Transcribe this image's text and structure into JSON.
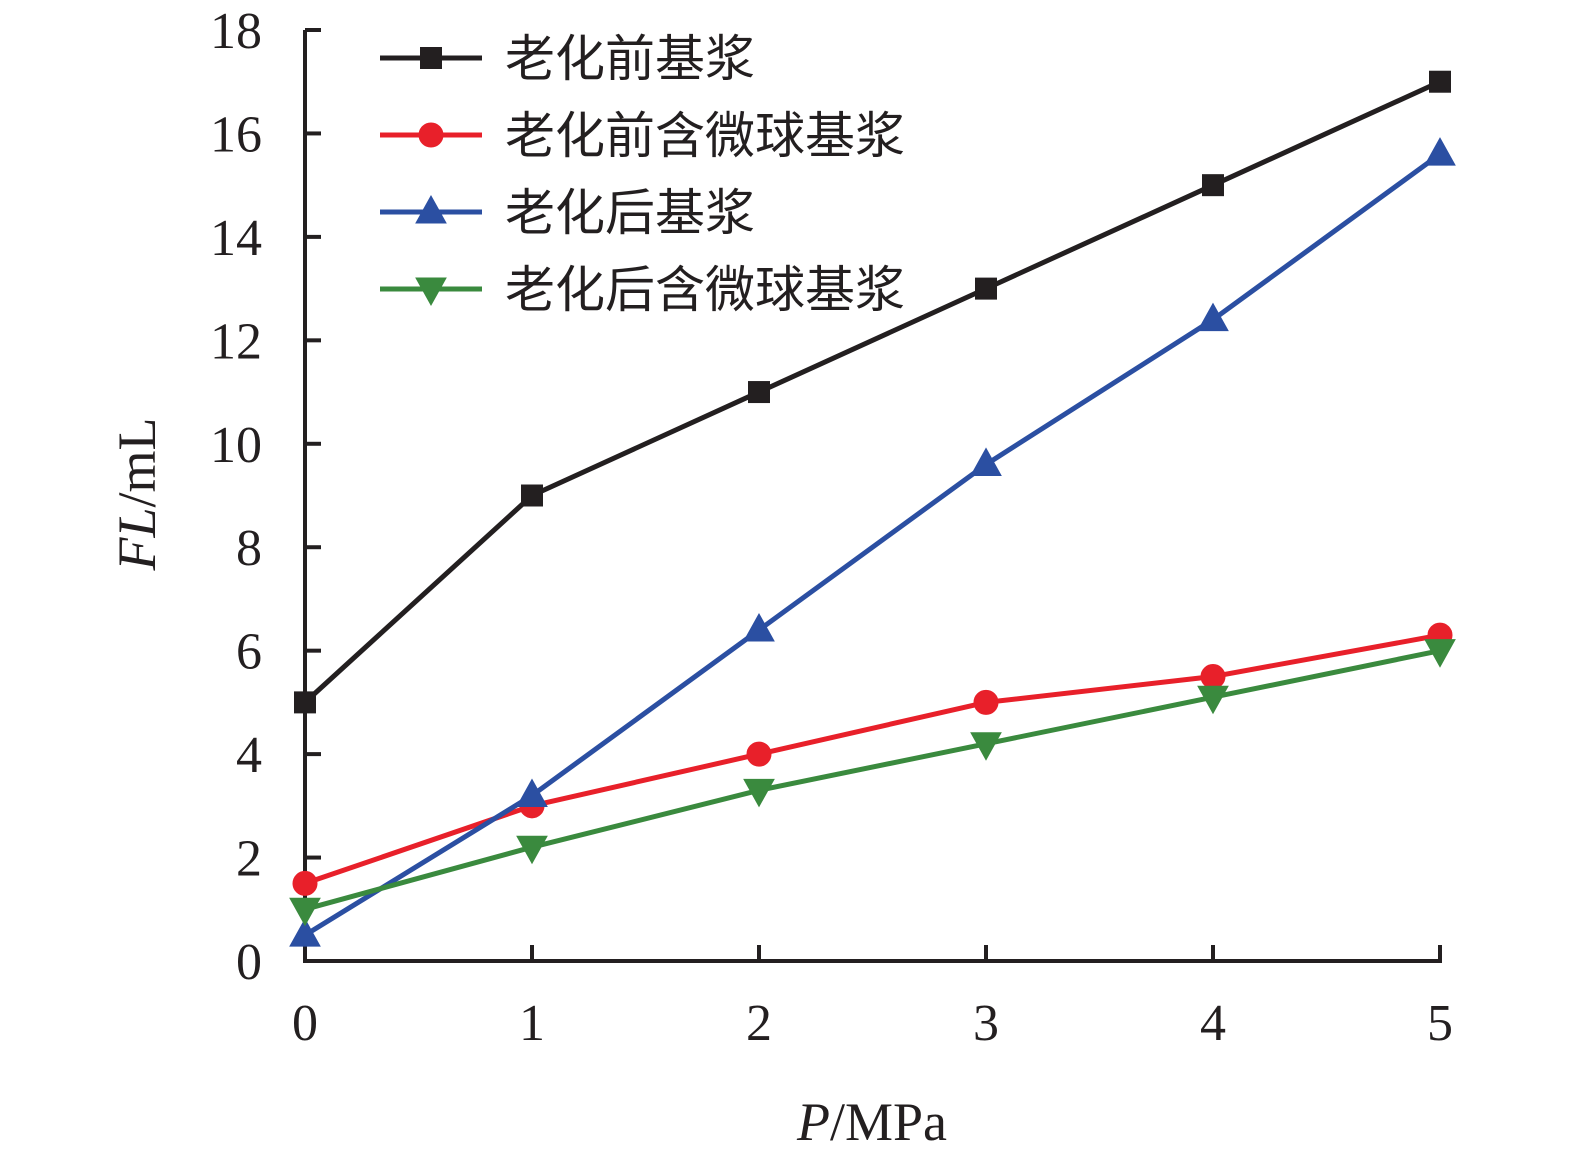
{
  "chart_data": {
    "type": "line",
    "x": [
      0,
      1,
      2,
      3,
      4,
      5
    ],
    "xlim": [
      0,
      5
    ],
    "ylim": [
      0,
      18
    ],
    "xticks": [
      "0",
      "1",
      "2",
      "3",
      "4",
      "5"
    ],
    "yticks": [
      "0",
      "2",
      "4",
      "6",
      "8",
      "10",
      "12",
      "14",
      "16",
      "18"
    ],
    "xlabel": {
      "italic": "P",
      "rest": "/MPa"
    },
    "ylabel": {
      "italic": "FL",
      "rest": "/mL"
    },
    "grid": false,
    "legend_position": "top-left",
    "series": [
      {
        "name": "老化前基浆",
        "color": "#231f20",
        "marker": "square",
        "values": [
          5,
          9,
          11,
          13,
          15,
          17
        ]
      },
      {
        "name": "老化前含微球基浆",
        "color": "#e8202a",
        "marker": "circle",
        "values": [
          1.5,
          3,
          4,
          5,
          5.5,
          6.3
        ]
      },
      {
        "name": "老化后基浆",
        "color": "#2b4fa2",
        "marker": "triangle-up",
        "values": [
          0.5,
          3.2,
          6.4,
          9.6,
          12.4,
          15.6
        ]
      },
      {
        "name": "老化后含微球基浆",
        "color": "#3a8a3e",
        "marker": "triangle-down",
        "values": [
          1,
          2.2,
          3.3,
          4.2,
          5.1,
          6
        ]
      }
    ]
  }
}
